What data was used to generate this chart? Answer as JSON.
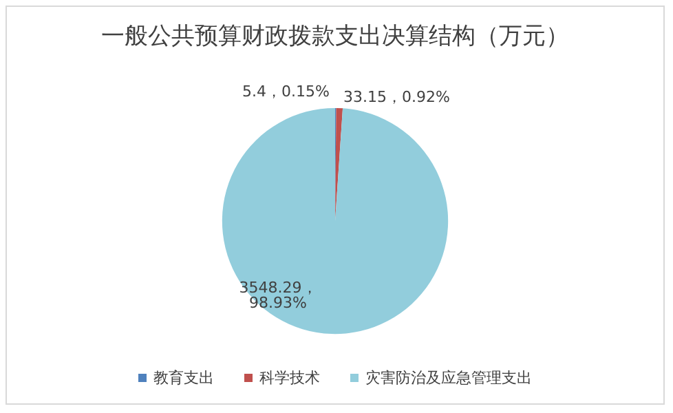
{
  "chart_data": {
    "type": "pie",
    "title": "一般公共预算财政拨款支出决算结构（万元）",
    "categories": [
      "教育支出",
      "科学技术",
      "灾害防治及应急管理支出"
    ],
    "values": [
      5.4,
      33.15,
      3548.29
    ],
    "colors": [
      "#4f81bd",
      "#c0504d",
      "#92cddc"
    ],
    "value_labels": [
      "5.4，0.15%",
      "33.15，0.92%",
      "3548.29，98.93%"
    ],
    "legend": "bottom"
  }
}
